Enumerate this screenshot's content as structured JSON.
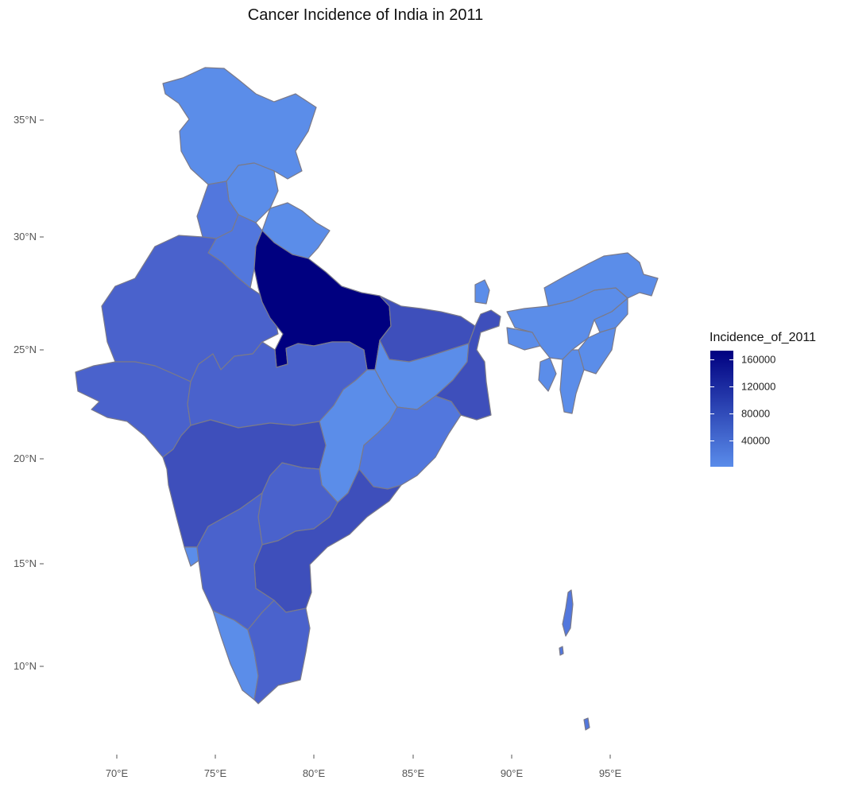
{
  "title": "Cancer Incidence of India in 2011",
  "legend": {
    "title": "Incidence_of_2011",
    "ticks": [
      "160000",
      "120000",
      "80000",
      "40000"
    ],
    "color_low": "#5a8cea",
    "color_high": "#000080"
  },
  "axes": {
    "y_ticks": [
      "35°N",
      "30°N",
      "25°N",
      "20°N",
      "15°N",
      "10°N"
    ],
    "x_ticks": [
      "70°E",
      "75°E",
      "80°E",
      "85°E",
      "90°E",
      "95°E"
    ]
  },
  "colors": {
    "light": "#5b8de9",
    "mid_light": "#5277dd",
    "mid": "#4a62cc",
    "mid_dark": "#3e4fbb",
    "dark": "#000080",
    "border": "#7a7a8a"
  }
}
